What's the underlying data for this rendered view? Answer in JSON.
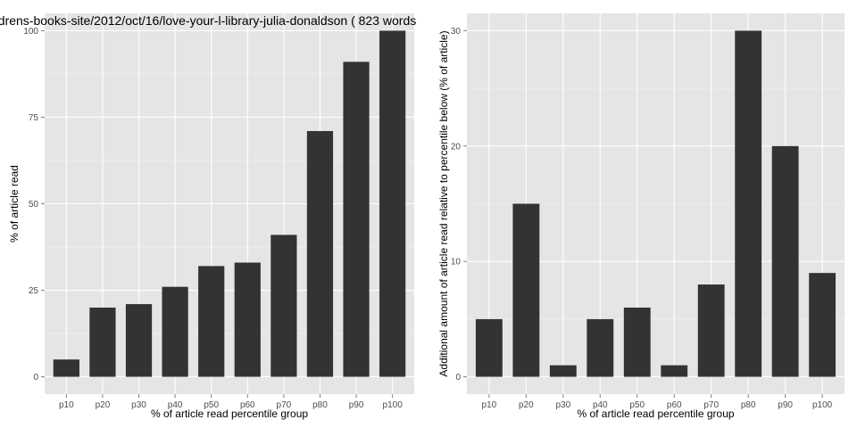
{
  "chart_data": [
    {
      "type": "bar",
      "title": "drens-books-site/2012/oct/16/love-your-l-library-julia-donaldson ( 823 words",
      "xlabel": "% of article read percentile group",
      "ylabel": "% of article read",
      "categories": [
        "p10",
        "p20",
        "p30",
        "p40",
        "p50",
        "p60",
        "p70",
        "p80",
        "p90",
        "p100"
      ],
      "values": [
        5,
        20,
        21,
        26,
        32,
        33,
        41,
        71,
        91,
        100
      ],
      "ylim": [
        0,
        100
      ],
      "yticks": [
        0,
        25,
        50,
        75,
        100
      ],
      "bar_color": "#333333",
      "panel_color": "#e5e5e5",
      "grid": true
    },
    {
      "type": "bar",
      "title": "",
      "xlabel": "% of article read percentile group",
      "ylabel": "Additional amount of article read relative to percentile below (% of article)",
      "categories": [
        "p10",
        "p20",
        "p30",
        "p40",
        "p50",
        "p60",
        "p70",
        "p80",
        "p90",
        "p100"
      ],
      "values": [
        5,
        15,
        1,
        5,
        6,
        1,
        8,
        30,
        20,
        9
      ],
      "ylim": [
        0,
        30
      ],
      "yticks": [
        0,
        10,
        20,
        30
      ],
      "bar_color": "#333333",
      "panel_color": "#e5e5e5",
      "grid": true
    }
  ]
}
